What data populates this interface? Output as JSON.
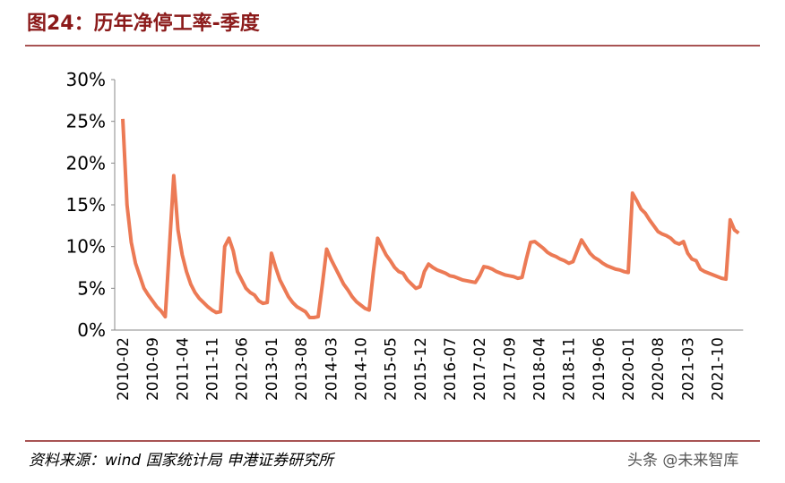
{
  "chart_data": {
    "type": "line",
    "title": "图24：历年净停工率-季度",
    "source": "资料来源：wind 国家统计局 申港证券研究所",
    "watermark": "头条 @未来智库",
    "categories": [
      "2010-02",
      null,
      null,
      null,
      null,
      null,
      null,
      "2010-09",
      null,
      null,
      null,
      null,
      null,
      null,
      "2011-04",
      null,
      null,
      null,
      null,
      null,
      null,
      "2011-11",
      null,
      null,
      null,
      null,
      null,
      null,
      "2012-06",
      null,
      null,
      null,
      null,
      null,
      null,
      "2013-01",
      null,
      null,
      null,
      null,
      null,
      null,
      "2013-08",
      null,
      null,
      null,
      null,
      null,
      null,
      "2014-03",
      null,
      null,
      null,
      null,
      null,
      null,
      "2014-10",
      null,
      null,
      null,
      null,
      null,
      null,
      "2015-05",
      null,
      null,
      null,
      null,
      null,
      null,
      "2015-12",
      null,
      null,
      null,
      null,
      null,
      null,
      "2016-07",
      null,
      null,
      null,
      null,
      null,
      null,
      "2017-02",
      null,
      null,
      null,
      null,
      null,
      null,
      "2017-09",
      null,
      null,
      null,
      null,
      null,
      null,
      "2018-04",
      null,
      null,
      null,
      null,
      null,
      null,
      "2018-11",
      null,
      null,
      null,
      null,
      null,
      null,
      "2019-06",
      null,
      null,
      null,
      null,
      null,
      null,
      "2020-01",
      null,
      null,
      null,
      null,
      null,
      null,
      "2020-08",
      null,
      null,
      null,
      null,
      null,
      null,
      "2021-03",
      null,
      null,
      null,
      null,
      null,
      null,
      "2021-10",
      null,
      null,
      null,
      null,
      null
    ],
    "values": [
      25.3,
      15,
      10.5,
      8,
      6.5,
      5,
      4.2,
      3.5,
      2.8,
      2.3,
      1.6,
      10,
      18.5,
      12,
      9,
      7,
      5.5,
      4.5,
      3.8,
      3.3,
      2.8,
      2.4,
      2.1,
      2.2,
      10,
      11,
      9.5,
      7,
      6,
      5,
      4.5,
      4.2,
      3.5,
      3.2,
      3.3,
      9.2,
      7.5,
      6,
      5,
      4,
      3.3,
      2.8,
      2.5,
      2.2,
      1.5,
      1.5,
      1.6,
      5.5,
      9.7,
      8.5,
      7.5,
      6.5,
      5.5,
      4.8,
      4,
      3.4,
      3,
      2.6,
      2.4,
      7,
      11,
      10,
      9,
      8.3,
      7.5,
      7,
      6.8,
      6,
      5.5,
      5,
      5.2,
      7,
      7.9,
      7.5,
      7.2,
      7,
      6.8,
      6.5,
      6.4,
      6.2,
      6,
      5.9,
      5.8,
      5.7,
      6.5,
      7.6,
      7.5,
      7.3,
      7,
      6.8,
      6.6,
      6.5,
      6.4,
      6.2,
      6.3,
      8.5,
      10.5,
      10.6,
      10.2,
      9.8,
      9.3,
      9,
      8.8,
      8.5,
      8.3,
      8,
      8.2,
      9.5,
      10.8,
      10,
      9.2,
      8.7,
      8.4,
      8,
      7.7,
      7.5,
      7.3,
      7.2,
      7,
      6.9,
      16.4,
      15.5,
      14.5,
      14,
      13.2,
      12.5,
      11.8,
      11.5,
      11.3,
      11,
      10.5,
      10.3,
      10.6,
      9.2,
      8.5,
      8.3,
      7.3,
      7,
      6.8,
      6.6,
      6.4,
      6.2,
      6.1,
      13.2,
      12,
      11.6
    ],
    "color": "#ec7a55",
    "ylim": [
      0,
      30
    ],
    "yticks": [
      {
        "value": 0,
        "label": "0%"
      },
      {
        "value": 5,
        "label": "5%"
      },
      {
        "value": 10,
        "label": "10%"
      },
      {
        "value": 15,
        "label": "15%"
      },
      {
        "value": 20,
        "label": "20%"
      },
      {
        "value": 25,
        "label": "25%"
      },
      {
        "value": 30,
        "label": "30%"
      }
    ]
  }
}
